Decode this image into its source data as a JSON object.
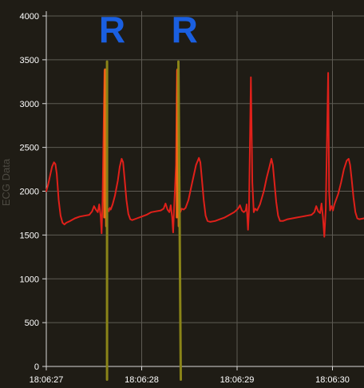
{
  "chart_data": {
    "type": "line",
    "ylabel": "ECG Data",
    "ylim": [
      0,
      4000
    ],
    "yticks": [
      0,
      500,
      1000,
      1500,
      2000,
      2500,
      3000,
      3500,
      4000
    ],
    "xlim": [
      0,
      3.33
    ],
    "xticks": [
      {
        "t": 0,
        "label": "18:06:27"
      },
      {
        "t": 1,
        "label": "18:06:28"
      },
      {
        "t": 2,
        "label": "18:06:29"
      },
      {
        "t": 3,
        "label": "18:06:30"
      }
    ],
    "grid": true,
    "series": [
      {
        "color": "#e0201a",
        "points": [
          [
            0.0,
            2000
          ],
          [
            0.02,
            2080
          ],
          [
            0.04,
            2180
          ],
          [
            0.06,
            2280
          ],
          [
            0.08,
            2330
          ],
          [
            0.095,
            2310
          ],
          [
            0.11,
            2200
          ],
          [
            0.13,
            1900
          ],
          [
            0.15,
            1720
          ],
          [
            0.17,
            1640
          ],
          [
            0.19,
            1620
          ],
          [
            0.21,
            1640
          ],
          [
            0.25,
            1660
          ],
          [
            0.3,
            1690
          ],
          [
            0.35,
            1710
          ],
          [
            0.4,
            1720
          ],
          [
            0.45,
            1730
          ],
          [
            0.48,
            1770
          ],
          [
            0.5,
            1830
          ],
          [
            0.52,
            1790
          ],
          [
            0.54,
            1760
          ],
          [
            0.555,
            1850
          ],
          [
            0.57,
            1720
          ],
          [
            0.58,
            1520
          ],
          [
            0.59,
            1900
          ],
          [
            0.61,
            3380
          ],
          [
            0.625,
            2200
          ],
          [
            0.635,
            1750
          ],
          [
            0.645,
            1800
          ],
          [
            0.655,
            1770
          ],
          [
            0.665,
            1810
          ],
          [
            0.675,
            1790
          ],
          [
            0.695,
            1850
          ],
          [
            0.72,
            1950
          ],
          [
            0.75,
            2120
          ],
          [
            0.77,
            2280
          ],
          [
            0.79,
            2370
          ],
          [
            0.805,
            2330
          ],
          [
            0.82,
            2150
          ],
          [
            0.84,
            1900
          ],
          [
            0.86,
            1740
          ],
          [
            0.88,
            1680
          ],
          [
            0.9,
            1670
          ],
          [
            0.95,
            1690
          ],
          [
            1.0,
            1710
          ],
          [
            1.05,
            1730
          ],
          [
            1.1,
            1760
          ],
          [
            1.15,
            1770
          ],
          [
            1.2,
            1780
          ],
          [
            1.23,
            1800
          ],
          [
            1.25,
            1860
          ],
          [
            1.27,
            1790
          ],
          [
            1.29,
            1760
          ],
          [
            1.305,
            1840
          ],
          [
            1.32,
            1700
          ],
          [
            1.33,
            1530
          ],
          [
            1.34,
            1800
          ],
          [
            1.36,
            2300
          ],
          [
            1.37,
            3380
          ],
          [
            1.39,
            2100
          ],
          [
            1.405,
            1760
          ],
          [
            1.42,
            1800
          ],
          [
            1.44,
            1790
          ],
          [
            1.46,
            1810
          ],
          [
            1.49,
            1900
          ],
          [
            1.53,
            2100
          ],
          [
            1.57,
            2300
          ],
          [
            1.6,
            2380
          ],
          [
            1.615,
            2330
          ],
          [
            1.63,
            2150
          ],
          [
            1.65,
            1900
          ],
          [
            1.67,
            1720
          ],
          [
            1.69,
            1660
          ],
          [
            1.72,
            1650
          ],
          [
            1.77,
            1660
          ],
          [
            1.82,
            1680
          ],
          [
            1.87,
            1700
          ],
          [
            1.92,
            1730
          ],
          [
            1.97,
            1760
          ],
          [
            2.01,
            1800
          ],
          [
            2.03,
            1840
          ],
          [
            2.05,
            1780
          ],
          [
            2.07,
            1760
          ],
          [
            2.09,
            1780
          ],
          [
            2.1,
            1850
          ],
          [
            2.115,
            1560
          ],
          [
            2.125,
            1780
          ],
          [
            2.145,
            3300
          ],
          [
            2.16,
            2100
          ],
          [
            2.175,
            1760
          ],
          [
            2.19,
            1800
          ],
          [
            2.21,
            1780
          ],
          [
            2.24,
            1850
          ],
          [
            2.28,
            2000
          ],
          [
            2.31,
            2150
          ],
          [
            2.34,
            2280
          ],
          [
            2.36,
            2370
          ],
          [
            2.375,
            2300
          ],
          [
            2.39,
            2120
          ],
          [
            2.41,
            1880
          ],
          [
            2.43,
            1720
          ],
          [
            2.45,
            1660
          ],
          [
            2.48,
            1660
          ],
          [
            2.53,
            1680
          ],
          [
            2.58,
            1690
          ],
          [
            2.63,
            1700
          ],
          [
            2.68,
            1710
          ],
          [
            2.73,
            1720
          ],
          [
            2.78,
            1730
          ],
          [
            2.81,
            1760
          ],
          [
            2.83,
            1830
          ],
          [
            2.85,
            1770
          ],
          [
            2.87,
            1750
          ],
          [
            2.885,
            1860
          ],
          [
            2.9,
            1700
          ],
          [
            2.915,
            1480
          ],
          [
            2.93,
            1800
          ],
          [
            2.955,
            3350
          ],
          [
            2.965,
            2000
          ],
          [
            2.975,
            1780
          ],
          [
            2.99,
            1830
          ],
          [
            3.005,
            1780
          ],
          [
            3.02,
            1850
          ],
          [
            3.06,
            1970
          ],
          [
            3.09,
            2100
          ],
          [
            3.12,
            2250
          ],
          [
            3.15,
            2350
          ],
          [
            3.17,
            2370
          ],
          [
            3.185,
            2300
          ],
          [
            3.2,
            2150
          ],
          [
            3.22,
            1930
          ],
          [
            3.24,
            1760
          ],
          [
            3.26,
            1690
          ],
          [
            3.28,
            1680
          ],
          [
            3.33,
            1690
          ]
        ]
      },
      {
        "color": "#f06a12",
        "points": [
          [
            0.608,
            1700
          ],
          [
            0.612,
            3050
          ],
          [
            0.616,
            3390
          ],
          [
            0.622,
            2200
          ],
          [
            0.628,
            1600
          ]
        ]
      },
      {
        "color": "#f06a12",
        "points": [
          [
            1.368,
            1700
          ],
          [
            1.372,
            3050
          ],
          [
            1.376,
            3390
          ],
          [
            1.382,
            2200
          ],
          [
            1.388,
            1600
          ]
        ]
      },
      {
        "color": "#8a8418",
        "points": [
          [
            0.637,
            3480
          ],
          [
            0.637,
            -150
          ]
        ]
      },
      {
        "color": "#8a8418",
        "points": [
          [
            1.385,
            3480
          ],
          [
            1.41,
            -150
          ]
        ]
      }
    ],
    "annotations": [
      {
        "text": "R",
        "t": 0.69,
        "y": 3700,
        "color": "#1a5fe0"
      },
      {
        "text": "R",
        "t": 1.45,
        "y": 3700,
        "color": "#1a5fe0"
      }
    ]
  }
}
